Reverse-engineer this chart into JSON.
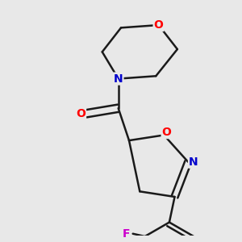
{
  "bg_color": "#e8e8e8",
  "bond_color": "#1a1a1a",
  "bond_width": 1.8,
  "atom_colors": {
    "O": "#ff0000",
    "N": "#0000cc",
    "F": "#cc00cc",
    "C": "#1a1a1a"
  },
  "font_size_atom": 10
}
